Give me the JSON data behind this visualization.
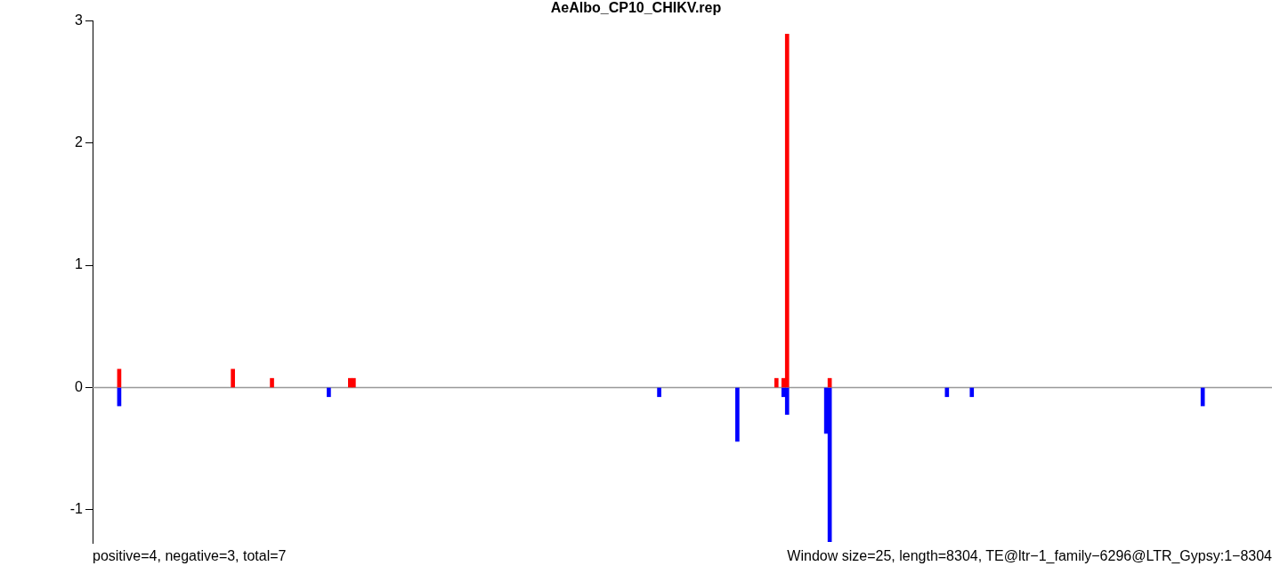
{
  "chart_data": {
    "type": "bar",
    "title": "AeAlbo_CP10_CHIKV.rep",
    "stacked": true,
    "grid": false,
    "legend": false,
    "ylim": [
      -1.27,
      3
    ],
    "yticks": [
      -1,
      0,
      1,
      2,
      3
    ],
    "categories": [
      null,
      null,
      null,
      null,
      null,
      null,
      null,
      null,
      null,
      null,
      null,
      null,
      null,
      null,
      null,
      null,
      null,
      null,
      null,
      null,
      null,
      null,
      null,
      null,
      null,
      null,
      null,
      null,
      null,
      null,
      null,
      null,
      null,
      null,
      null,
      null,
      null,
      null,
      null,
      null,
      null,
      null,
      null,
      null,
      null,
      null,
      null,
      null,
      null,
      null,
      null,
      null,
      null,
      null,
      null,
      null,
      null,
      null,
      null,
      null,
      null,
      null,
      null,
      null,
      null,
      null,
      null,
      null,
      null,
      null,
      null,
      null,
      null,
      null,
      null,
      null,
      null,
      null,
      null,
      null,
      null,
      null,
      null,
      null,
      null,
      null,
      null,
      null,
      null,
      null,
      null,
      null,
      null,
      null,
      null,
      null,
      null,
      null,
      null,
      null,
      null,
      null,
      null,
      null,
      null,
      null,
      null,
      null,
      null,
      null,
      null,
      null,
      null,
      null,
      null,
      null,
      null,
      null,
      null,
      null,
      null,
      null,
      null,
      null,
      null,
      null,
      null,
      null,
      null,
      null,
      null,
      null,
      null,
      null,
      null,
      null,
      null,
      null,
      null,
      null,
      null,
      null,
      null,
      null,
      null,
      null,
      null,
      null,
      null,
      null,
      null,
      null,
      null,
      null,
      null,
      null,
      null,
      null,
      null,
      null,
      null,
      null,
      null,
      null,
      null,
      null,
      null,
      null,
      null,
      null,
      null,
      null,
      null,
      null,
      null,
      null,
      null,
      null,
      null,
      null,
      null,
      null,
      null,
      null,
      null,
      null,
      null,
      null,
      null,
      null,
      null,
      null,
      null,
      null,
      null,
      null,
      null,
      null,
      null,
      null,
      null,
      null,
      null,
      null,
      null,
      null,
      null,
      null,
      null,
      null,
      null,
      null,
      null,
      null,
      null,
      null,
      null,
      null,
      null,
      null,
      null,
      null,
      null,
      null,
      null,
      null,
      null,
      null,
      null,
      null,
      null,
      null,
      null,
      null,
      null,
      null,
      null,
      null,
      null,
      null,
      null,
      null,
      null,
      null,
      null,
      null,
      null,
      null,
      null,
      null,
      null,
      null,
      null,
      null,
      null,
      null,
      null,
      null,
      null,
      null,
      null,
      null,
      null,
      null,
      null,
      null,
      null,
      null,
      null,
      null,
      null,
      null,
      null,
      null,
      null,
      null,
      null,
      null,
      null,
      null,
      null,
      null,
      null,
      null,
      null,
      null,
      null,
      null,
      null,
      null,
      null,
      null,
      null,
      null,
      null,
      null,
      null,
      null,
      null,
      null,
      null,
      null,
      null,
      null,
      null,
      null,
      null,
      null,
      null,
      null,
      null,
      null,
      null,
      null,
      null,
      null,
      null,
      null,
      null,
      null,
      null,
      null,
      null,
      null,
      null,
      null,
      null,
      null,
      null,
      null,
      null,
      null
    ],
    "series": [
      {
        "color": "#ff0000",
        "values": [
          null,
          null,
          null,
          null,
          null,
          null,
          null,
          0.15,
          null,
          null,
          null,
          null,
          null,
          null,
          null,
          null,
          null,
          null,
          null,
          null,
          null,
          null,
          null,
          null,
          null,
          null,
          null,
          null,
          null,
          null,
          null,
          null,
          null,
          null,
          null,
          null,
          null,
          null,
          null,
          0.15,
          null,
          null,
          null,
          null,
          null,
          null,
          null,
          null,
          null,
          null,
          0.075,
          null,
          null,
          null,
          null,
          null,
          null,
          null,
          null,
          null,
          null,
          null,
          null,
          null,
          null,
          null,
          null,
          null,
          null,
          null,
          null,
          null,
          0.075,
          0.075,
          null,
          null,
          null,
          null,
          null,
          null,
          null,
          null,
          null,
          null,
          null,
          null,
          null,
          null,
          null,
          null,
          null,
          null,
          null,
          null,
          null,
          null,
          null,
          null,
          null,
          null,
          null,
          null,
          null,
          null,
          null,
          null,
          null,
          null,
          null,
          null,
          null,
          null,
          null,
          null,
          null,
          null,
          null,
          null,
          null,
          null,
          null,
          null,
          null,
          null,
          null,
          null,
          null,
          null,
          null,
          null,
          null,
          null,
          null,
          null,
          null,
          null,
          null,
          null,
          null,
          null,
          null,
          null,
          null,
          null,
          null,
          null,
          null,
          null,
          null,
          null,
          null,
          null,
          null,
          null,
          null,
          null,
          null,
          null,
          null,
          null,
          null,
          null,
          null,
          null,
          null,
          null,
          null,
          null,
          null,
          null,
          null,
          null,
          null,
          null,
          null,
          null,
          null,
          null,
          null,
          null,
          null,
          null,
          null,
          null,
          null,
          null,
          null,
          null,
          null,
          null,
          null,
          null,
          0.075,
          null,
          0.075,
          2.89,
          null,
          null,
          null,
          null,
          null,
          null,
          null,
          null,
          null,
          null,
          null,
          0.075,
          null,
          null,
          null,
          null,
          null,
          null,
          null,
          null,
          null,
          null,
          null,
          null,
          null,
          null,
          null,
          null,
          null,
          null,
          null,
          null,
          null,
          null,
          null,
          null,
          null,
          null,
          null,
          null,
          null,
          null,
          null,
          null,
          null,
          null,
          null,
          null,
          null,
          null,
          null,
          null,
          null,
          null,
          null,
          null,
          null,
          null,
          null,
          null,
          null,
          null,
          null,
          null,
          null,
          null,
          null,
          null,
          null,
          null,
          null,
          null,
          null,
          null,
          null,
          null,
          null,
          null,
          null,
          null,
          null,
          null,
          null,
          null,
          null,
          null,
          null,
          null,
          null,
          null,
          null,
          null,
          null,
          null,
          null,
          null,
          null,
          null,
          null,
          null,
          null,
          null,
          null,
          null,
          null,
          null,
          null,
          null,
          null,
          null,
          null,
          null,
          null,
          null,
          null,
          null,
          null,
          null,
          null,
          null,
          null,
          null,
          null,
          null,
          null,
          null,
          null,
          null,
          null,
          null,
          null,
          null,
          null,
          null,
          null,
          null
        ]
      },
      {
        "color": "#0000ff",
        "values": [
          null,
          null,
          null,
          null,
          null,
          null,
          null,
          -0.15,
          null,
          null,
          null,
          null,
          null,
          null,
          null,
          null,
          null,
          null,
          null,
          null,
          null,
          null,
          null,
          null,
          null,
          null,
          null,
          null,
          null,
          null,
          null,
          null,
          null,
          null,
          null,
          null,
          null,
          null,
          null,
          null,
          null,
          null,
          null,
          null,
          null,
          null,
          null,
          null,
          null,
          null,
          null,
          null,
          null,
          null,
          null,
          null,
          null,
          null,
          null,
          null,
          null,
          null,
          null,
          null,
          null,
          null,
          -0.075,
          null,
          null,
          null,
          null,
          null,
          null,
          null,
          null,
          null,
          null,
          null,
          null,
          null,
          null,
          null,
          null,
          null,
          null,
          null,
          null,
          null,
          null,
          null,
          null,
          null,
          null,
          null,
          null,
          null,
          null,
          null,
          null,
          null,
          null,
          null,
          null,
          null,
          null,
          null,
          null,
          null,
          null,
          null,
          null,
          null,
          null,
          null,
          null,
          null,
          null,
          null,
          null,
          null,
          null,
          null,
          null,
          null,
          null,
          null,
          null,
          null,
          null,
          null,
          null,
          null,
          null,
          null,
          null,
          null,
          null,
          null,
          null,
          null,
          null,
          null,
          null,
          null,
          null,
          null,
          null,
          null,
          null,
          null,
          null,
          null,
          null,
          null,
          null,
          null,
          null,
          null,
          null,
          -0.075,
          null,
          null,
          null,
          null,
          null,
          null,
          null,
          null,
          null,
          null,
          null,
          null,
          null,
          null,
          null,
          null,
          null,
          null,
          null,
          null,
          null,
          -0.44,
          null,
          null,
          null,
          null,
          null,
          null,
          null,
          null,
          null,
          null,
          null,
          null,
          -0.075,
          -0.22,
          null,
          null,
          null,
          null,
          null,
          null,
          null,
          null,
          null,
          null,
          -0.375,
          -1.26,
          null,
          null,
          null,
          null,
          null,
          null,
          null,
          null,
          null,
          null,
          null,
          null,
          null,
          null,
          null,
          null,
          null,
          null,
          null,
          null,
          null,
          null,
          null,
          null,
          null,
          null,
          null,
          null,
          null,
          null,
          null,
          null,
          -0.075,
          null,
          null,
          null,
          null,
          null,
          null,
          -0.075,
          null,
          null,
          null,
          null,
          null,
          null,
          null,
          null,
          null,
          null,
          null,
          null,
          null,
          null,
          null,
          null,
          null,
          null,
          null,
          null,
          null,
          null,
          null,
          null,
          null,
          null,
          null,
          null,
          null,
          null,
          null,
          null,
          null,
          null,
          null,
          null,
          null,
          null,
          null,
          null,
          null,
          null,
          null,
          null,
          null,
          null,
          null,
          null,
          null,
          null,
          null,
          null,
          null,
          null,
          null,
          null,
          null,
          null,
          null,
          null,
          null,
          null,
          null,
          null,
          -0.15,
          null,
          null,
          null,
          null,
          null,
          null,
          null,
          null,
          null,
          null,
          null,
          null,
          null,
          null,
          null,
          null,
          null,
          null,
          null
        ]
      }
    ],
    "ref_lines": [
      {
        "axis": "y",
        "value": 0,
        "color": "#999999"
      }
    ],
    "annotations": [
      "positive=4, negative=3, total=7",
      "Window size=25, length=8304, TE@ltr−1_family−6296@LTR_Gypsy:1−8304"
    ]
  }
}
